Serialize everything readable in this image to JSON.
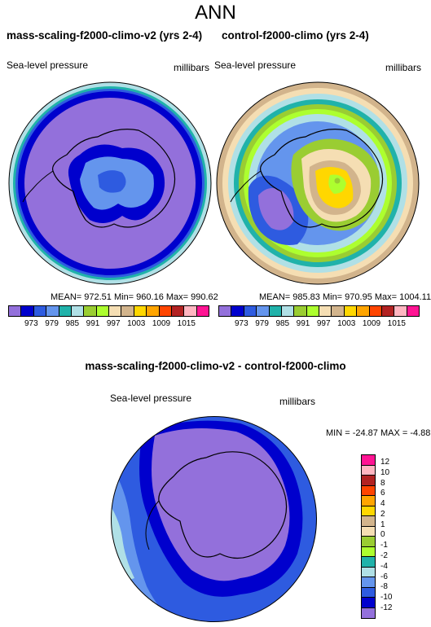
{
  "main_title": "ANN",
  "panels": {
    "left": {
      "title": "mass-scaling-f2000-climo-v2 (yrs 2-4)",
      "variable": "Sea-level pressure",
      "units": "millibars",
      "stats": "MEAN= 972.51  Min= 960.16  Max= 990.62"
    },
    "right": {
      "title": "control-f2000-climo (yrs 2-4)",
      "variable": "Sea-level pressure",
      "units": "millibars",
      "stats": "MEAN= 985.83  Min= 970.95  Max= 1004.11"
    },
    "diff": {
      "title": "mass-scaling-f2000-climo-v2 - control-f2000-climo",
      "variable": "Sea-level pressure",
      "units": "millibars",
      "stats": "MIN = -24.87 MAX =  -4.88"
    }
  },
  "colorbar_top": {
    "labels": [
      "973",
      "979",
      "979",
      "985",
      "991",
      "991",
      "997",
      "1003",
      "1009",
      "1015"
    ],
    "colors": [
      "#9370DB",
      "#0000CD",
      "#2E5BE0",
      "#6495ED",
      "#20B2AA",
      "#B0E0E6",
      "#9ACD32",
      "#ADFF2F",
      "#F5DEB3",
      "#D2B48C",
      "#FFD700",
      "#FFA500",
      "#FF4500",
      "#B22222",
      "#FFB6C1",
      "#FF1493"
    ]
  },
  "colorbar_diff": {
    "labels": [
      "12",
      "10",
      "8",
      "6",
      "4",
      "2",
      "1",
      "0",
      "-1",
      "-2",
      "-4",
      "-6",
      "-8",
      "-10",
      "-12"
    ],
    "colors": [
      "#FF1493",
      "#FFB6C1",
      "#B22222",
      "#FF4500",
      "#FFA500",
      "#FFD700",
      "#D2B48C",
      "#F5DEB3",
      "#9ACD32",
      "#ADFF2F",
      "#20B2AA",
      "#B0E0E6",
      "#6495ED",
      "#2E5BE0",
      "#0000CD",
      "#9370DB"
    ]
  }
}
